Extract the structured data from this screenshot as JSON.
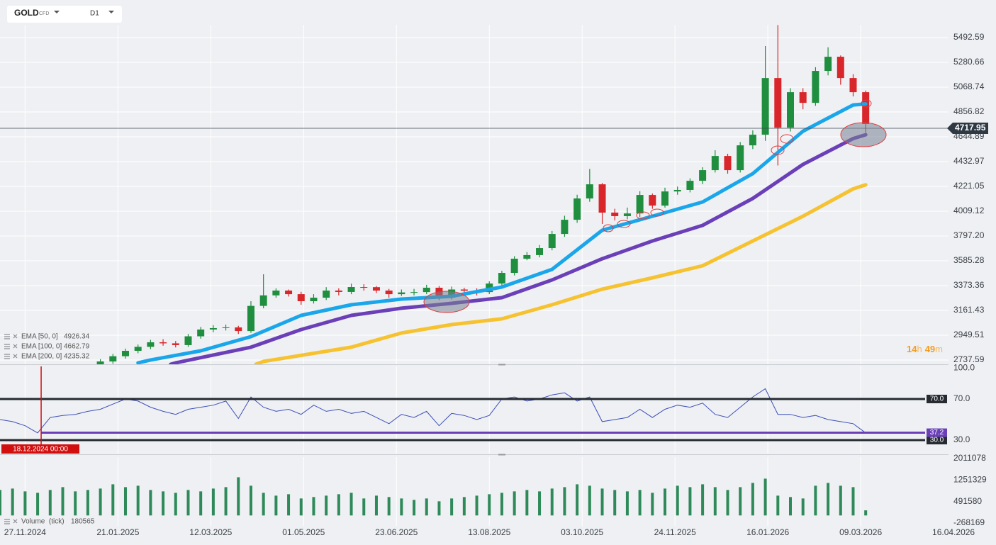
{
  "header": {
    "symbol": "GOLD",
    "instrument": "CFD",
    "timeframe": "D1",
    "countdown": {
      "hours": 14,
      "hours_unit": "h",
      "minutes": 49,
      "minutes_unit": "m"
    }
  },
  "chart_data": [
    {
      "type": "candlestick",
      "up_color": "#1f8f3f",
      "down_color": "#d8262b",
      "x": [
        30,
        35,
        40,
        45,
        50,
        55,
        60,
        65,
        70,
        75,
        80,
        85,
        90,
        95,
        100,
        105,
        110,
        115,
        120,
        125,
        130,
        135,
        140,
        145,
        150,
        155,
        160,
        165,
        170,
        175,
        180,
        185,
        190,
        195,
        200,
        205,
        210,
        215,
        220,
        225,
        230,
        235,
        240,
        245,
        250,
        255,
        260,
        265,
        270,
        275,
        280,
        285,
        290,
        295,
        300,
        305,
        310,
        315,
        320,
        325,
        330,
        335
      ],
      "open": [
        2700,
        2725,
        2770,
        2816,
        2850,
        2889,
        2880,
        2865,
        2940,
        2998,
        3010,
        3016,
        2985,
        3200,
        3290,
        3331,
        3300,
        3240,
        3270,
        3331,
        3319,
        3361,
        3360,
        3331,
        3300,
        3315,
        3318,
        3355,
        3270,
        3340,
        3330,
        3318,
        3391,
        3482,
        3603,
        3634,
        3694,
        3815,
        3936,
        4118,
        4239,
        3997,
        3967,
        3990,
        4148,
        4057,
        4178,
        4191,
        4269,
        4360,
        4481,
        4360,
        4572,
        4663,
        5147,
        4723,
        5026,
        4935,
        5208,
        5329,
        5147,
        5026
      ],
      "high": [
        2745,
        2790,
        2835,
        2870,
        2910,
        2915,
        2900,
        2960,
        3020,
        3035,
        3040,
        3030,
        3240,
        3470,
        3350,
        3340,
        3320,
        3300,
        3360,
        3350,
        3390,
        3385,
        3370,
        3345,
        3340,
        3345,
        3380,
        3370,
        3365,
        3355,
        3350,
        3410,
        3500,
        3625,
        3660,
        3720,
        3840,
        3970,
        4150,
        4370,
        4250,
        4030,
        4040,
        4180,
        4160,
        4210,
        4220,
        4290,
        4385,
        4530,
        4500,
        4600,
        4700,
        5420,
        5600,
        5060,
        5060,
        5240,
        5410,
        5340,
        5180,
        5040
      ],
      "low": [
        2690,
        2705,
        2750,
        2795,
        2830,
        2860,
        2845,
        2850,
        2920,
        2975,
        2990,
        2960,
        2970,
        3180,
        3270,
        3280,
        3210,
        3220,
        3250,
        3290,
        3300,
        3330,
        3310,
        3270,
        3285,
        3290,
        3300,
        3250,
        3255,
        3300,
        3290,
        3300,
        3370,
        3460,
        3590,
        3615,
        3675,
        3790,
        3910,
        4090,
        3900,
        3930,
        3940,
        3960,
        4030,
        4040,
        4150,
        4170,
        4240,
        4340,
        4330,
        4340,
        4540,
        4610,
        4400,
        4690,
        4880,
        4910,
        5170,
        5090,
        4990,
        4680
      ],
      "close": [
        2725,
        2770,
        2816,
        2850,
        2889,
        2880,
        2865,
        2940,
        2998,
        3010,
        3016,
        2985,
        3200,
        3290,
        3331,
        3300,
        3240,
        3270,
        3331,
        3319,
        3361,
        3360,
        3331,
        3300,
        3315,
        3318,
        3355,
        3270,
        3340,
        3330,
        3318,
        3391,
        3482,
        3603,
        3634,
        3694,
        3815,
        3936,
        4118,
        4239,
        3997,
        3967,
        3990,
        4148,
        4057,
        4178,
        4191,
        4269,
        4360,
        4481,
        4360,
        4572,
        4663,
        5147,
        4723,
        5026,
        4935,
        5208,
        5329,
        5147,
        5026,
        4754
      ],
      "series": [
        {
          "name": "EMA [50, 0]",
          "color": "#1aa6ea",
          "x": [
            45,
            50,
            70,
            90,
            110,
            130,
            150,
            170,
            190,
            210,
            230,
            250,
            270,
            290,
            310,
            330,
            335
          ],
          "values": [
            2713,
            2738,
            2816,
            2937,
            3119,
            3210,
            3258,
            3282,
            3361,
            3512,
            3846,
            3966,
            4088,
            4330,
            4693,
            4917,
            4926.34
          ]
        },
        {
          "name": "EMA [100, 0]",
          "color": "#6a3fb8",
          "x": [
            58,
            60,
            90,
            110,
            130,
            150,
            170,
            190,
            210,
            230,
            250,
            270,
            290,
            310,
            330,
            335
          ],
          "values": [
            2701,
            2713,
            2847,
            2998,
            3119,
            3180,
            3222,
            3270,
            3422,
            3603,
            3755,
            3888,
            4118,
            4409,
            4630,
            4662.79
          ]
        },
        {
          "name": "EMA [200, 0]",
          "color": "#f6c22f",
          "x": [
            92,
            95,
            130,
            150,
            170,
            190,
            210,
            230,
            250,
            270,
            290,
            310,
            330,
            335
          ],
          "values": [
            2701,
            2725,
            2847,
            2968,
            3040,
            3089,
            3210,
            3343,
            3440,
            3543,
            3755,
            3966,
            4200,
            4235.32
          ]
        }
      ],
      "last_price": 4717.95,
      "xlim": [
        -10,
        368
      ],
      "xticks": [
        {
          "value": 0,
          "label": "27.11.2024"
        },
        {
          "value": 37,
          "label": "21.01.2025"
        },
        {
          "value": 74,
          "label": "12.03.2025"
        },
        {
          "value": 111,
          "label": "01.05.2025"
        },
        {
          "value": 148,
          "label": "23.06.2025"
        },
        {
          "value": 185,
          "label": "13.08.2025"
        },
        {
          "value": 222,
          "label": "03.10.2025"
        },
        {
          "value": 259,
          "label": "24.11.2025"
        },
        {
          "value": 296,
          "label": "16.01.2026"
        },
        {
          "value": 333,
          "label": "09.03.2026"
        },
        {
          "value": 370,
          "label": "16.04.2026"
        }
      ],
      "ylim": [
        2701,
        5602
      ],
      "yticks": [
        5492.59,
        5280.66,
        5068.74,
        4856.82,
        4644.89,
        4432.97,
        4221.05,
        4009.12,
        {
          "value": 3797.2,
          "label": "3797.20"
        },
        3585.28,
        3373.36,
        3161.43,
        2949.51,
        2737.59
      ],
      "grid": true
    },
    {
      "type": "line",
      "color": "#3e4fb8",
      "x": [
        -10,
        -5,
        0,
        5,
        10,
        15,
        20,
        25,
        30,
        35,
        40,
        45,
        50,
        55,
        60,
        65,
        70,
        75,
        80,
        85,
        90,
        95,
        100,
        105,
        110,
        115,
        120,
        125,
        130,
        135,
        140,
        145,
        150,
        155,
        160,
        165,
        170,
        175,
        180,
        185,
        190,
        195,
        200,
        205,
        210,
        215,
        220,
        225,
        230,
        235,
        240,
        245,
        250,
        255,
        260,
        265,
        270,
        275,
        280,
        285,
        290,
        295,
        300,
        305,
        310,
        315,
        320,
        325,
        330,
        335
      ],
      "values": [
        50,
        48,
        44,
        37,
        52,
        54,
        55,
        58,
        60,
        65,
        70,
        68,
        62,
        58,
        55,
        60,
        62,
        64,
        68,
        51,
        72,
        62,
        58,
        60,
        55,
        64,
        58,
        60,
        56,
        58,
        52,
        46,
        55,
        52,
        58,
        44,
        56,
        54,
        50,
        54,
        70,
        72,
        68,
        70,
        74,
        76,
        68,
        72,
        48,
        50,
        52,
        60,
        52,
        60,
        64,
        62,
        66,
        55,
        52,
        62,
        72,
        80,
        55,
        55,
        52,
        54,
        50,
        48,
        46,
        37
      ],
      "levels": [
        {
          "value": 70,
          "label": "70.0",
          "color": "#262b31"
        },
        {
          "value": 30,
          "label": "30.0",
          "color": "#262b31"
        },
        {
          "value": 37.2,
          "color": "#6a3fb8"
        }
      ],
      "crosshair": {
        "x": 6.4,
        "label": "18.12.2024 00:00",
        "color": "#d10f0f"
      },
      "ylim": [
        16.9,
        101.7
      ],
      "yticks": [
        {
          "value": 100,
          "label": "100.0"
        },
        {
          "value": 70,
          "label": "70.0"
        },
        {
          "value": 30,
          "label": "30.0"
        }
      ]
    },
    {
      "type": "bar",
      "name": "Volume  (tick)",
      "color": "#2f8a5a",
      "x": [
        -10,
        -5,
        0,
        5,
        10,
        15,
        20,
        25,
        30,
        35,
        40,
        45,
        50,
        55,
        60,
        65,
        70,
        75,
        80,
        85,
        90,
        95,
        100,
        105,
        110,
        115,
        120,
        125,
        130,
        135,
        140,
        145,
        150,
        155,
        160,
        165,
        170,
        175,
        180,
        185,
        190,
        195,
        200,
        205,
        210,
        215,
        220,
        225,
        230,
        235,
        240,
        245,
        250,
        255,
        260,
        265,
        270,
        275,
        280,
        285,
        290,
        295,
        300,
        305,
        310,
        315,
        320,
        325,
        330,
        335
      ],
      "values": [
        900000,
        950000,
        850000,
        800000,
        900000,
        1000000,
        850000,
        900000,
        950000,
        1100000,
        1000000,
        1050000,
        900000,
        850000,
        800000,
        900000,
        850000,
        950000,
        1000000,
        1350000,
        1050000,
        800000,
        700000,
        750000,
        600000,
        650000,
        700000,
        750000,
        800000,
        600000,
        700000,
        650000,
        600000,
        550000,
        600000,
        500000,
        600000,
        650000,
        700000,
        750000,
        800000,
        850000,
        900000,
        850000,
        950000,
        1000000,
        1100000,
        1050000,
        950000,
        900000,
        850000,
        900000,
        800000,
        950000,
        1050000,
        1000000,
        1100000,
        1000000,
        900000,
        1000000,
        1150000,
        1300000,
        700000,
        650000,
        600000,
        1050000,
        1150000,
        1050000,
        1000000,
        180565
      ],
      "ylim": [
        -368000,
        2061000
      ],
      "yticks": [
        2011078,
        1251329,
        491580,
        -268169
      ]
    }
  ]
}
